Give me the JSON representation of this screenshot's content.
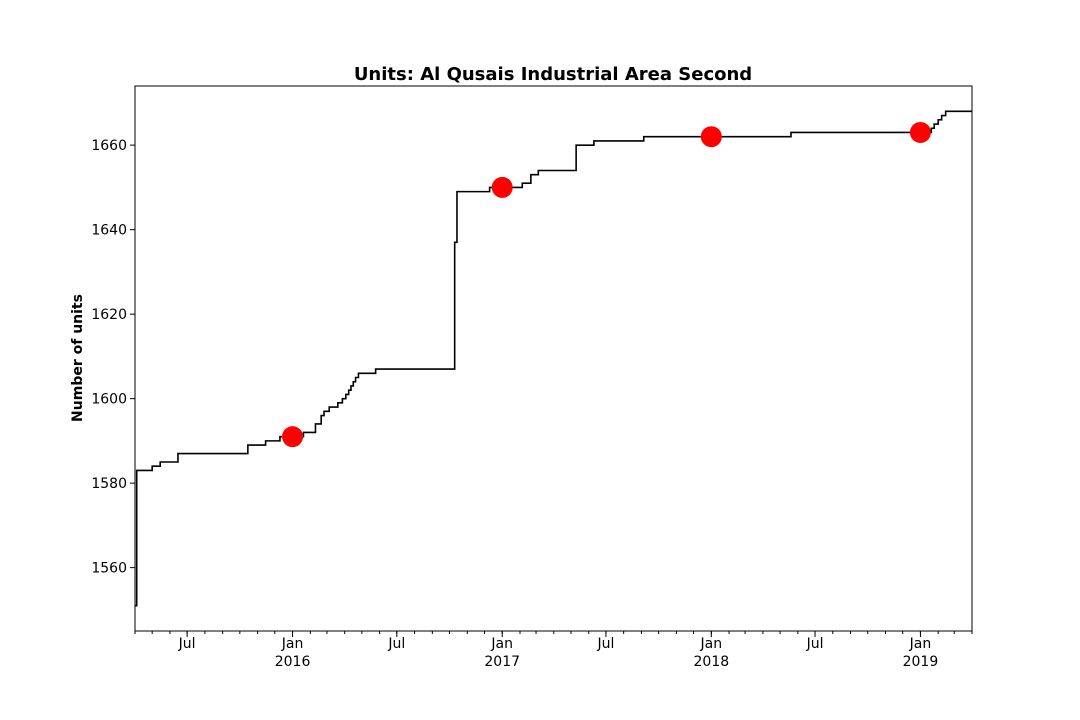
{
  "chart_data": {
    "type": "line",
    "title": "Units: Al Qusais Industrial Area Second",
    "xlabel": "",
    "ylabel": "Number of units",
    "xlim": [
      "2015-04-01",
      "2019-04-01"
    ],
    "ylim": [
      1545,
      1674
    ],
    "y_ticks": [
      1560,
      1580,
      1600,
      1620,
      1640,
      1660
    ],
    "x_ticks": [
      {
        "date": "2015-07-01",
        "label": "Jul",
        "sublabel": ""
      },
      {
        "date": "2016-01-01",
        "label": "Jan",
        "sublabel": "2016"
      },
      {
        "date": "2016-07-01",
        "label": "Jul",
        "sublabel": ""
      },
      {
        "date": "2017-01-01",
        "label": "Jan",
        "sublabel": "2017"
      },
      {
        "date": "2017-07-01",
        "label": "Jul",
        "sublabel": ""
      },
      {
        "date": "2018-01-01",
        "label": "Jan",
        "sublabel": "2018"
      },
      {
        "date": "2018-07-01",
        "label": "Jul",
        "sublabel": ""
      },
      {
        "date": "2019-01-01",
        "label": "Jan",
        "sublabel": "2019"
      }
    ],
    "grid": false,
    "series": [
      {
        "style": "step",
        "color": "#000000",
        "points": [
          [
            "2015-04-01",
            1551
          ],
          [
            "2015-04-04",
            1583
          ],
          [
            "2015-05-01",
            1584
          ],
          [
            "2015-05-15",
            1585
          ],
          [
            "2015-06-15",
            1587
          ],
          [
            "2015-10-15",
            1589
          ],
          [
            "2015-11-15",
            1590
          ],
          [
            "2015-12-10",
            1591
          ],
          [
            "2016-01-20",
            1592
          ],
          [
            "2016-02-10",
            1594
          ],
          [
            "2016-02-20",
            1596
          ],
          [
            "2016-02-25",
            1597
          ],
          [
            "2016-03-05",
            1598
          ],
          [
            "2016-03-20",
            1599
          ],
          [
            "2016-03-28",
            1600
          ],
          [
            "2016-04-03",
            1601
          ],
          [
            "2016-04-08",
            1602
          ],
          [
            "2016-04-12",
            1603
          ],
          [
            "2016-04-16",
            1604
          ],
          [
            "2016-04-20",
            1605
          ],
          [
            "2016-04-25",
            1606
          ],
          [
            "2016-05-25",
            1607
          ],
          [
            "2016-10-10",
            1637
          ],
          [
            "2016-10-14",
            1649
          ],
          [
            "2016-12-10",
            1650
          ],
          [
            "2017-02-05",
            1651
          ],
          [
            "2017-02-20",
            1653
          ],
          [
            "2017-03-05",
            1654
          ],
          [
            "2017-05-10",
            1660
          ],
          [
            "2017-06-10",
            1661
          ],
          [
            "2017-09-05",
            1662
          ],
          [
            "2018-05-20",
            1663
          ],
          [
            "2019-01-20",
            1664
          ],
          [
            "2019-01-25",
            1665
          ],
          [
            "2019-02-01",
            1666
          ],
          [
            "2019-02-07",
            1667
          ],
          [
            "2019-02-14",
            1668
          ],
          [
            "2019-04-01",
            1668
          ]
        ]
      }
    ],
    "markers": [
      {
        "date": "2016-01-01",
        "value": 1591,
        "color": "#ff0000"
      },
      {
        "date": "2017-01-01",
        "value": 1650,
        "color": "#ff0000"
      },
      {
        "date": "2018-01-01",
        "value": 1662,
        "color": "#ff0000"
      },
      {
        "date": "2019-01-01",
        "value": 1663,
        "color": "#ff0000"
      }
    ]
  }
}
